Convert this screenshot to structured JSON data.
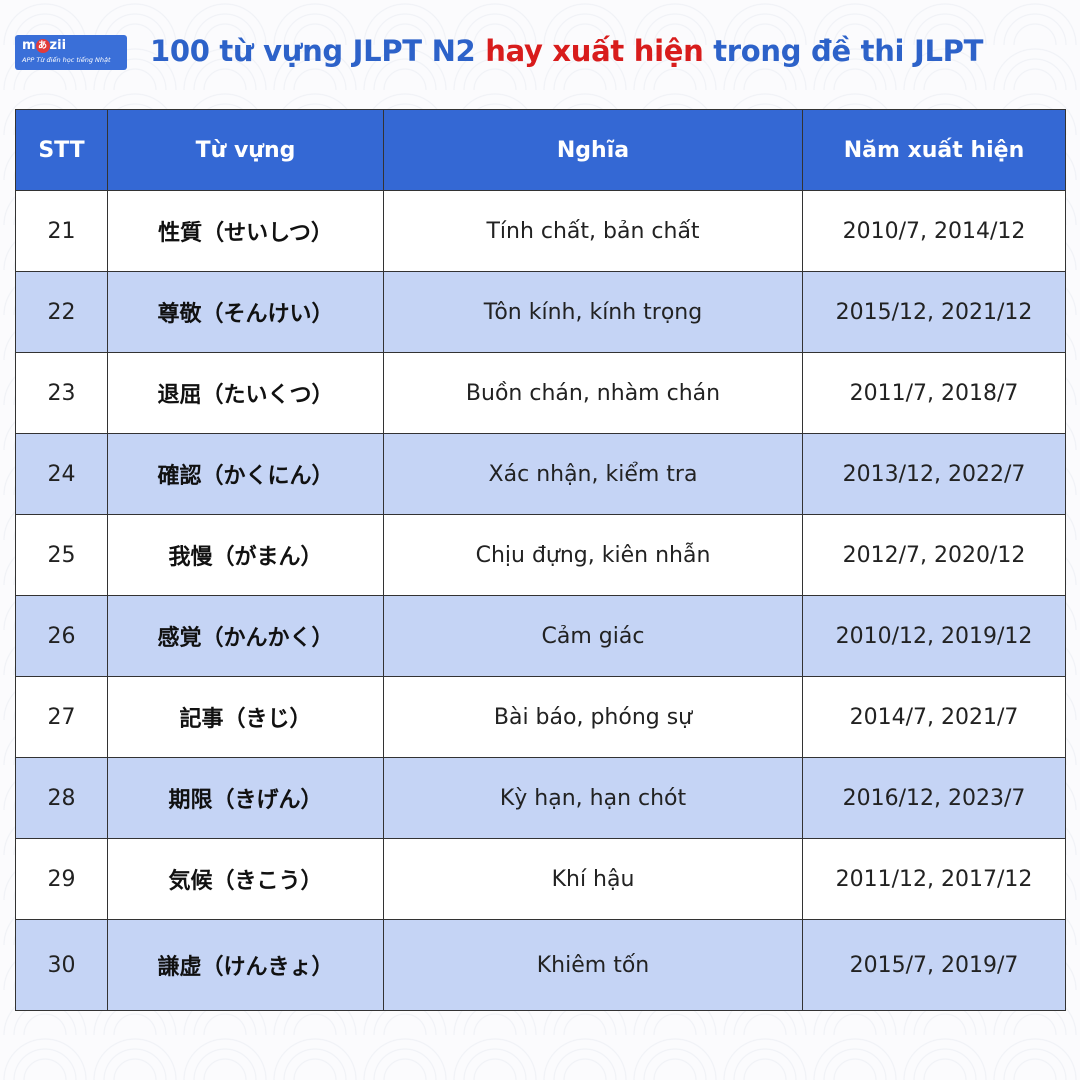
{
  "logo": {
    "brand_pre": "m",
    "brand_mid": "あ",
    "brand_post": "zii",
    "tagline": "APP Từ điển học tiếng Nhật"
  },
  "title": {
    "part1": "100 từ vựng JLPT N2 ",
    "highlight": "hay xuất hiện",
    "part2": " trong đề thi JLPT"
  },
  "colors": {
    "header": "#3468d4",
    "alt_row": "#c5d4f5",
    "title": "#2d62c9",
    "highlight": "#d81c1c"
  },
  "table": {
    "headers": [
      "STT",
      "Từ vựng",
      "Nghĩa",
      "Năm xuất hiện"
    ],
    "rows": [
      {
        "stt": "21",
        "word": "性質（せいしつ）",
        "meaning": "Tính chất, bản chất",
        "years": "2010/7, 2014/12"
      },
      {
        "stt": "22",
        "word": "尊敬（そんけい）",
        "meaning": "Tôn kính, kính trọng",
        "years": "2015/12, 2021/12"
      },
      {
        "stt": "23",
        "word": "退屈（たいくつ）",
        "meaning": "Buồn chán, nhàm chán",
        "years": "2011/7, 2018/7"
      },
      {
        "stt": "24",
        "word": "確認（かくにん）",
        "meaning": "Xác nhận, kiểm tra",
        "years": "2013/12, 2022/7"
      },
      {
        "stt": "25",
        "word": "我慢（がまん）",
        "meaning": "Chịu đựng, kiên nhẫn",
        "years": "2012/7, 2020/12"
      },
      {
        "stt": "26",
        "word": "感覚（かんかく）",
        "meaning": "Cảm giác",
        "years": "2010/12, 2019/12"
      },
      {
        "stt": "27",
        "word": "記事（きじ）",
        "meaning": "Bài báo, phóng sự",
        "years": "2014/7, 2021/7"
      },
      {
        "stt": "28",
        "word": "期限（きげん）",
        "meaning": "Kỳ hạn, hạn chót",
        "years": "2016/12, 2023/7"
      },
      {
        "stt": "29",
        "word": "気候（きこう）",
        "meaning": "Khí hậu",
        "years": "2011/12, 2017/12"
      },
      {
        "stt": "30",
        "word": "謙虚（けんきょ）",
        "meaning": "Khiêm tốn",
        "years": "2015/7, 2019/7"
      }
    ]
  }
}
